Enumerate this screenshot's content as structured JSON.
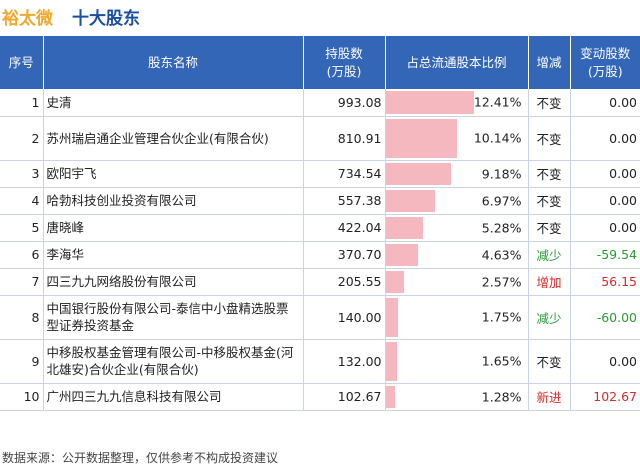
{
  "title": {
    "stock": "裕太微",
    "main": "十大股东"
  },
  "columns": {
    "rank": "序号",
    "name": "股东名称",
    "shares_line1": "持股数",
    "shares_line2": "(万股)",
    "ratio": "占总流通股本比例",
    "change": "增减",
    "delta_line1": "变动股数",
    "delta_line2": "(万股)"
  },
  "rows": [
    {
      "rank": "1",
      "name": "史清",
      "shares": "993.08",
      "ratio": "12.41%",
      "ratio_value": 12.41,
      "change": "不变",
      "change_type": "same",
      "delta": "0.00"
    },
    {
      "rank": "2",
      "name": "苏州瑞启通企业管理合伙企业(有限合伙)",
      "shares": "810.91",
      "ratio": "10.14%",
      "ratio_value": 10.14,
      "change": "不变",
      "change_type": "same",
      "delta": "0.00"
    },
    {
      "rank": "3",
      "name": "欧阳宇飞",
      "shares": "734.54",
      "ratio": "9.18%",
      "ratio_value": 9.18,
      "change": "不变",
      "change_type": "same",
      "delta": "0.00"
    },
    {
      "rank": "4",
      "name": "哈勃科技创业投资有限公司",
      "shares": "557.38",
      "ratio": "6.97%",
      "ratio_value": 6.97,
      "change": "不变",
      "change_type": "same",
      "delta": "0.00"
    },
    {
      "rank": "5",
      "name": "唐晓峰",
      "shares": "422.04",
      "ratio": "5.28%",
      "ratio_value": 5.28,
      "change": "不变",
      "change_type": "same",
      "delta": "0.00"
    },
    {
      "rank": "6",
      "name": "李海华",
      "shares": "370.70",
      "ratio": "4.63%",
      "ratio_value": 4.63,
      "change": "减少",
      "change_type": "down",
      "delta": "-59.54"
    },
    {
      "rank": "7",
      "name": "四三九九网络股份有限公司",
      "shares": "205.55",
      "ratio": "2.57%",
      "ratio_value": 2.57,
      "change": "增加",
      "change_type": "up",
      "delta": "56.15"
    },
    {
      "rank": "8",
      "name": "中国银行股份有限公司-泰信中小盘精选股票型证券投资基金",
      "shares": "140.00",
      "ratio": "1.75%",
      "ratio_value": 1.75,
      "change": "减少",
      "change_type": "down",
      "delta": "-60.00"
    },
    {
      "rank": "9",
      "name": "中移股权基金管理有限公司-中移股权基金(河北雄安)合伙企业(有限合伙)",
      "shares": "132.00",
      "ratio": "1.65%",
      "ratio_value": 1.65,
      "change": "不变",
      "change_type": "same",
      "delta": "0.00"
    },
    {
      "rank": "10",
      "name": "广州四三九九信息科技有限公司",
      "shares": "102.67",
      "ratio": "1.28%",
      "ratio_value": 1.28,
      "change": "新进",
      "change_type": "up",
      "delta": "102.67"
    }
  ],
  "footer": "数据来源：公开数据整理，仅供参考不构成投资建议",
  "colors": {
    "header_bg": "#3466b8",
    "bar": "#f5b8bf",
    "up": "#d52b2b",
    "down": "#2a9a35",
    "stock_title": "#f0a830",
    "main_title": "#1a4fa0"
  }
}
